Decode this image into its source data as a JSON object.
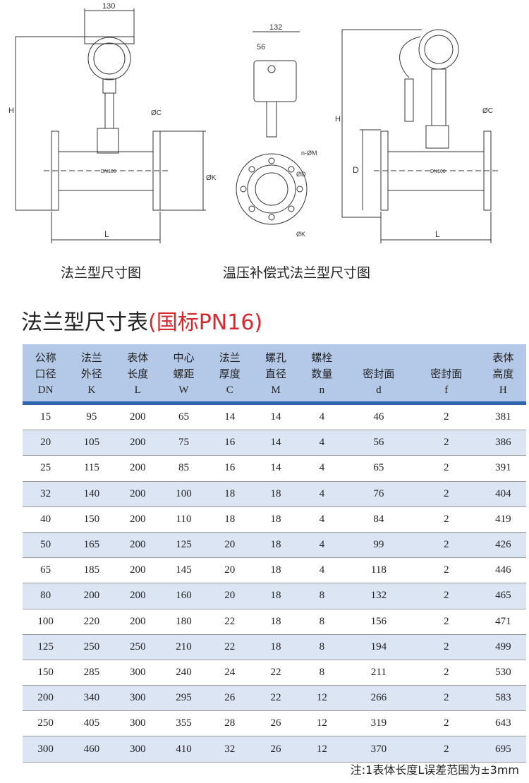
{
  "drawings": {
    "flange": {
      "width_dim": "130",
      "height_dim": "H",
      "length_dim": "L",
      "flange_thickness": "ØC",
      "flange_diameter": "ØK",
      "body_label": "DN100"
    },
    "side": {
      "width_dim": "132",
      "offset_dim": "56",
      "bolt_holes": "n-ØM",
      "seal_diameter": "ØD",
      "bolt_circle": "ØK"
    },
    "compensated": {
      "height_dim": "H",
      "diameter_dim": "D",
      "length_dim": "L",
      "flange_thickness": "ØC",
      "body_label": "DN100"
    }
  },
  "captions": {
    "flange": "法兰型尺寸图",
    "compensated": "温压补偿式法兰型尺寸图"
  },
  "title": {
    "main": "法兰型尺寸表",
    "sub": "(国标PN16)",
    "sub_color": "#d8282f"
  },
  "table": {
    "headers": [
      {
        "l1": "公称",
        "l2": "口径",
        "code": "DN"
      },
      {
        "l1": "法兰",
        "l2": "外径",
        "code": "K"
      },
      {
        "l1": "表体",
        "l2": "长度",
        "code": "L"
      },
      {
        "l1": "中心",
        "l2": "螺距",
        "code": "W"
      },
      {
        "l1": "法兰",
        "l2": "厚度",
        "code": "C"
      },
      {
        "l1": "螺孔",
        "l2": "直径",
        "code": "M"
      },
      {
        "l1": "螺栓",
        "l2": "数量",
        "code": "n"
      },
      {
        "l1": "",
        "l2": "密封面",
        "code": "d"
      },
      {
        "l1": "",
        "l2": "密封面",
        "code": "f"
      },
      {
        "l1": "表体",
        "l2": "高度",
        "code": "H"
      }
    ],
    "rows": [
      [
        "15",
        "95",
        "200",
        "65",
        "14",
        "14",
        "4",
        "46",
        "2",
        "381"
      ],
      [
        "20",
        "105",
        "200",
        "75",
        "16",
        "14",
        "4",
        "56",
        "2",
        "386"
      ],
      [
        "25",
        "115",
        "200",
        "85",
        "16",
        "14",
        "4",
        "65",
        "2",
        "391"
      ],
      [
        "32",
        "140",
        "200",
        "100",
        "18",
        "18",
        "4",
        "76",
        "2",
        "404"
      ],
      [
        "40",
        "150",
        "200",
        "110",
        "18",
        "18",
        "4",
        "84",
        "2",
        "419"
      ],
      [
        "50",
        "165",
        "200",
        "125",
        "20",
        "18",
        "4",
        "99",
        "2",
        "426"
      ],
      [
        "65",
        "185",
        "200",
        "145",
        "20",
        "18",
        "4",
        "118",
        "2",
        "446"
      ],
      [
        "80",
        "200",
        "200",
        "160",
        "20",
        "18",
        "8",
        "132",
        "2",
        "465"
      ],
      [
        "100",
        "220",
        "200",
        "180",
        "22",
        "18",
        "8",
        "156",
        "2",
        "471"
      ],
      [
        "125",
        "250",
        "250",
        "210",
        "22",
        "18",
        "8",
        "194",
        "2",
        "499"
      ],
      [
        "150",
        "285",
        "300",
        "240",
        "24",
        "22",
        "8",
        "211",
        "2",
        "530"
      ],
      [
        "200",
        "340",
        "300",
        "295",
        "26",
        "22",
        "12",
        "266",
        "2",
        "583"
      ],
      [
        "250",
        "405",
        "300",
        "355",
        "28",
        "26",
        "12",
        "319",
        "2",
        "643"
      ],
      [
        "300",
        "460",
        "300",
        "410",
        "32",
        "26",
        "12",
        "370",
        "2",
        "695"
      ]
    ]
  },
  "note": "注:1表体长度L误差范围为±3mm"
}
